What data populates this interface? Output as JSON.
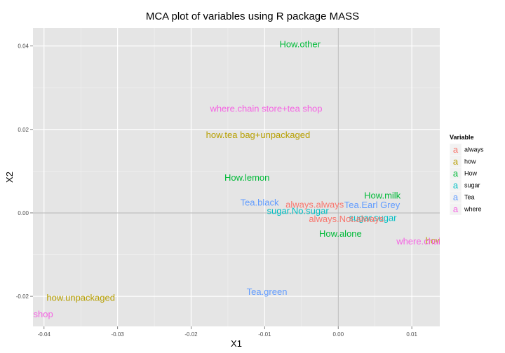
{
  "chart_data": {
    "type": "scatter",
    "title": "MCA plot of variables using R package MASS",
    "xlabel": "X1",
    "ylabel": "X2",
    "xlim": [
      -0.0415,
      0.0138
    ],
    "ylim": [
      -0.0272,
      0.0443
    ],
    "x_ticks": [
      {
        "value": -0.04,
        "label": "-0.04"
      },
      {
        "value": -0.03,
        "label": "-0.03"
      },
      {
        "value": -0.02,
        "label": "-0.02"
      },
      {
        "value": -0.01,
        "label": "-0.01"
      },
      {
        "value": 0.0,
        "label": "0.00"
      },
      {
        "value": 0.01,
        "label": "0.01"
      }
    ],
    "y_ticks": [
      {
        "value": -0.02,
        "label": "-0.02"
      },
      {
        "value": 0.0,
        "label": "0.00"
      },
      {
        "value": 0.02,
        "label": "0.02"
      },
      {
        "value": 0.04,
        "label": "0.04"
      }
    ],
    "grid": true,
    "reference_lines": {
      "x": 0,
      "y": 0
    },
    "legend": {
      "title": "Variable",
      "placement": "right",
      "entries": [
        {
          "name": "always",
          "color": "#F8766D"
        },
        {
          "name": "how",
          "color": "#B79F00"
        },
        {
          "name": "How",
          "color": "#00BA38"
        },
        {
          "name": "sugar",
          "color": "#00BFC4"
        },
        {
          "name": "Tea",
          "color": "#619CFF"
        },
        {
          "name": "where",
          "color": "#F564E3"
        }
      ]
    },
    "points": [
      {
        "label": "How.other",
        "variable": "How",
        "x": -0.0052,
        "y": 0.0404
      },
      {
        "label": "where.chain store+tea shop",
        "variable": "where",
        "x": -0.0098,
        "y": 0.025
      },
      {
        "label": "how.tea bag+unpackaged",
        "variable": "how",
        "x": -0.0109,
        "y": 0.0187
      },
      {
        "label": "How.lemon",
        "variable": "How",
        "x": -0.0124,
        "y": 0.0085
      },
      {
        "label": "How.milk",
        "variable": "How",
        "x": 0.006,
        "y": 0.0042
      },
      {
        "label": "Tea.black",
        "variable": "Tea",
        "x": -0.0107,
        "y": 0.0025
      },
      {
        "label": "always.always",
        "variable": "always",
        "x": -0.0032,
        "y": 0.002
      },
      {
        "label": "Tea.Earl Grey",
        "variable": "Tea",
        "x": 0.0046,
        "y": 0.0019
      },
      {
        "label": "sugar.No.sugar",
        "variable": "sugar",
        "x": -0.0055,
        "y": 0.0005
      },
      {
        "label": "sugar.sugar",
        "variable": "sugar",
        "x": 0.0047,
        "y": -0.0012
      },
      {
        "label": "always.Not.always",
        "variable": "always",
        "x": 0.0011,
        "y": -0.0014
      },
      {
        "label": "How.alone",
        "variable": "How",
        "x": 0.0003,
        "y": -0.005
      },
      {
        "label": "how.tea bag",
        "variable": "how",
        "x": 0.0152,
        "y": -0.0066
      },
      {
        "label": "where.chain store",
        "variable": "where",
        "x": 0.0128,
        "y": -0.0068
      },
      {
        "label": "Tea.green",
        "variable": "Tea",
        "x": -0.0097,
        "y": -0.0189
      },
      {
        "label": "how.unpackaged",
        "variable": "how",
        "x": -0.035,
        "y": -0.0203
      },
      {
        "label": "where.tea shop",
        "variable": "where",
        "x": -0.043,
        "y": -0.0243
      }
    ]
  }
}
